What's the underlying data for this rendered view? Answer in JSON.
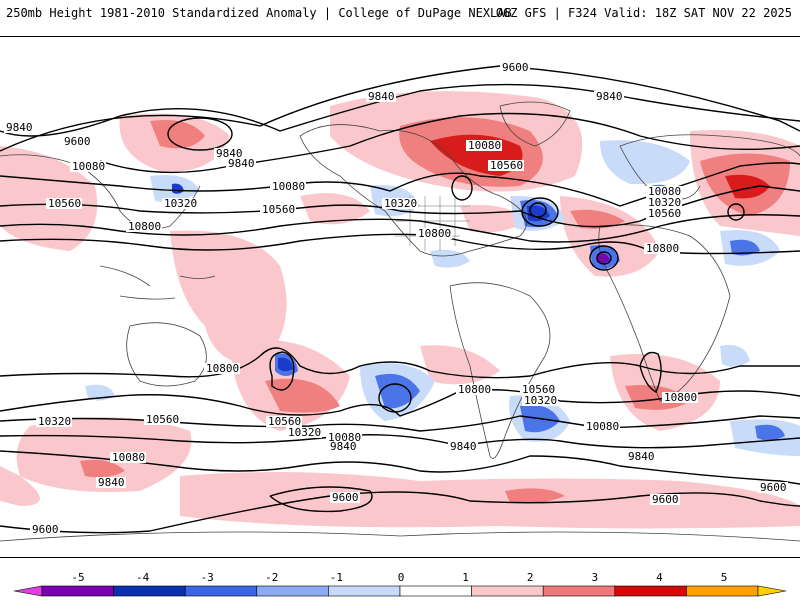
{
  "header": {
    "title_left": "250mb Height 1981-2010 Standardized Anomaly | College of DuPage NEXLAB",
    "title_right": "06Z GFS | F324 Valid: 18Z SAT NOV 22 2025"
  },
  "contour_labels": {
    "l9600a": "9600",
    "l9840a": "9840",
    "l9840b": "9840",
    "l9600b": "9600",
    "l9840c": "9840",
    "l9840d": "9840",
    "l10080a": "10080",
    "l10080b": "10080",
    "l10320a": "10320",
    "l10560a": "10560",
    "l10560b": "10560",
    "l10800a": "10800",
    "l10320b": "10320",
    "l10800b": "10800",
    "l10080c": "10080",
    "l10560c": "10560",
    "l10320c": "10320",
    "l10080d": "10080",
    "l10320d": "10320",
    "l10560d": "10560",
    "l10800c": "10800",
    "l10800d": "10800",
    "l10800e": "10800",
    "l10800f": "10800",
    "l10560e": "10560",
    "l10320e": "10320",
    "l10320f": "10320",
    "l10560f": "10560",
    "l10320g": "10320",
    "l10080e": "10080",
    "l9840e": "9840",
    "l9840f": "9840",
    "l10080f": "10080",
    "l9840g": "9840",
    "l9600c": "9600",
    "l9600d": "9600",
    "l9600e": "9600",
    "l10080g": "10080",
    "l9840h": "9840"
  },
  "legend": {
    "ticks": [
      "-5",
      "-4",
      "-3",
      "-2",
      "-1",
      "0",
      "1",
      "2",
      "3",
      "4",
      "5"
    ],
    "colors": [
      "#7a00b4",
      "#0a2fb0",
      "#3c64e6",
      "#8aaaf2",
      "#c8d8fa",
      "#ffffff",
      "#ffffff",
      "#fac8c8",
      "#f07878",
      "#d20a0a",
      "#ffa000"
    ],
    "end_left": "#e040e0",
    "end_right": "#ffd000"
  },
  "palette": {
    "weak_pos": "#fac8cc",
    "mod_pos": "#f08080",
    "strong_pos": "#d81c1c",
    "weak_neg": "#c8dcfa",
    "mod_neg": "#4a74e8",
    "strong_neg": "#1a3cc8",
    "extreme_neg": "#7a00b4"
  }
}
